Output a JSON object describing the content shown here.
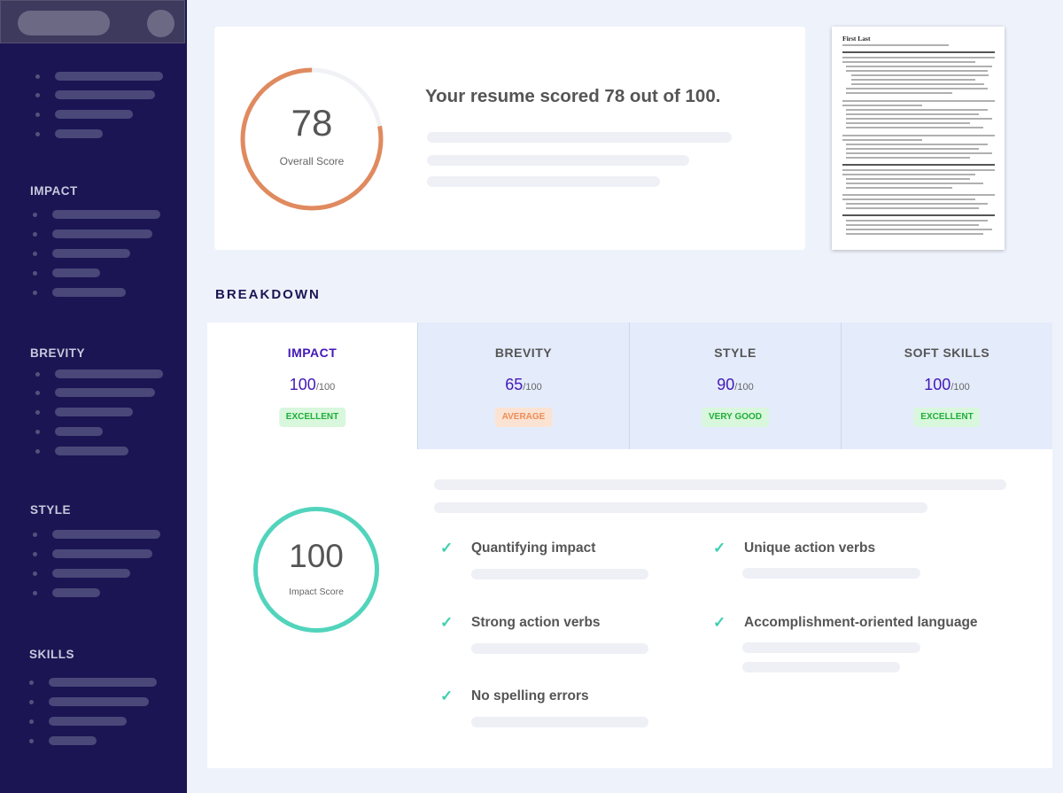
{
  "sidebar": {
    "sections": [
      "IMPACT",
      "BREVITY",
      "STYLE",
      "SKILLS"
    ]
  },
  "score": {
    "value": "78",
    "label": "Overall Score",
    "fraction": 0.78,
    "headline": "Your resume scored 78 out of 100.",
    "ring_color": "#e08a5f"
  },
  "resume": {
    "name": "First Last"
  },
  "breakdown": {
    "title": "BREAKDOWN",
    "tabs": [
      {
        "label": "IMPACT",
        "score": "100",
        "denominator": "/100",
        "badge": "EXCELLENT",
        "badge_bg": "#d8f7dc",
        "badge_fg": "#1fae38"
      },
      {
        "label": "BREVITY",
        "score": "65",
        "denominator": "/100",
        "badge": "AVERAGE",
        "badge_bg": "#fbe3d3",
        "badge_fg": "#ef8d55"
      },
      {
        "label": "STYLE",
        "score": "90",
        "denominator": "/100",
        "badge": "VERY GOOD",
        "badge_bg": "#d8f7dc",
        "badge_fg": "#1fae38"
      },
      {
        "label": "SOFT SKILLS",
        "score": "100",
        "denominator": "/100",
        "badge": "EXCELLENT",
        "badge_bg": "#d8f7dc",
        "badge_fg": "#1fae38"
      }
    ],
    "impact": {
      "value": "100",
      "label": "Impact Score",
      "ring_color": "#52d4bc",
      "items": [
        "Quantifying impact",
        "Unique action verbs",
        "Strong action verbs",
        "Accomplishment-oriented language",
        "No spelling errors"
      ]
    }
  }
}
